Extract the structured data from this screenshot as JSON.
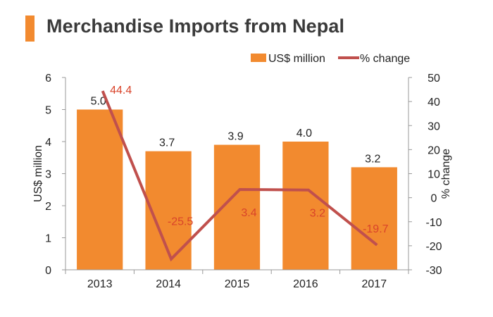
{
  "title": "Merchandise Imports from Nepal",
  "colors": {
    "accent": "#f28a2f",
    "bar": "#f28a2f",
    "line": "#c0504d",
    "line_label": "#d9432a",
    "text": "#222222",
    "axis": "#9a9a9a"
  },
  "chart_data": {
    "type": "bar",
    "title": "Merchandise Imports from Nepal",
    "categories": [
      "2013",
      "2014",
      "2015",
      "2016",
      "2017"
    ],
    "series": [
      {
        "name": "US$ million",
        "type": "bar",
        "axis": "left",
        "values": [
          5.0,
          3.7,
          3.9,
          4.0,
          3.2
        ],
        "labels": [
          "5.0",
          "3.7",
          "3.9",
          "4.0",
          "3.2"
        ]
      },
      {
        "name": "% change",
        "type": "line",
        "axis": "right",
        "values": [
          44.4,
          -25.5,
          3.4,
          3.2,
          -19.7
        ],
        "labels": [
          "44.4",
          "-25.5",
          "3.4",
          "3.2",
          "-19.7"
        ]
      }
    ],
    "ylabel": "US$ million",
    "y2label": "% change",
    "ylim": [
      0,
      6
    ],
    "yticks": [
      "0",
      "1",
      "2",
      "3",
      "4",
      "5",
      "6"
    ],
    "y2lim": [
      -30,
      50
    ],
    "y2ticks": [
      "-30",
      "-20",
      "-10",
      "0",
      "10",
      "20",
      "30",
      "40",
      "50"
    ],
    "legend_position": "top-right",
    "grid": false
  }
}
